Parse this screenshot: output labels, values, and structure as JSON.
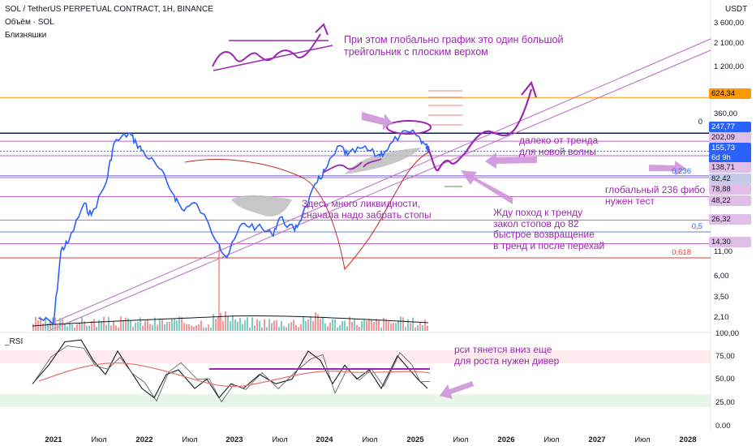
{
  "header": {
    "symbol": "SOL / TetherUS PERPETUAL CONTRACT, 1H, BINANCE",
    "volume_label": "Объём · SOL",
    "indicator_label": "Близняшки",
    "currency": "USDT",
    "rsi_label": "_RSI"
  },
  "price_axis": {
    "scale": "log",
    "ticks": [
      "3 600,00",
      "2 100,00",
      "1 200,00",
      "360,00",
      "11,00",
      "6,00",
      "3,50",
      "2,10"
    ],
    "tags": [
      {
        "text": "624,34",
        "color": "#ff9800",
        "text_color": "#000000"
      },
      {
        "text": "247,77",
        "color": "#2962ff",
        "text_color": "#ffffff"
      },
      {
        "text": "202,09",
        "color": "#e1bee7",
        "text_color": "#131722"
      },
      {
        "text": "155,73",
        "color": "#2962ff",
        "text_color": "#ffffff"
      },
      {
        "text": "6d 9h",
        "color": "#2962ff",
        "text_color": "#ffffff"
      },
      {
        "text": "138,71",
        "color": "#e1bee7",
        "text_color": "#131722"
      },
      {
        "text": "82,42",
        "color": "#c5cae9",
        "text_color": "#131722"
      },
      {
        "text": "78,88",
        "color": "#e1bee7",
        "text_color": "#131722"
      },
      {
        "text": "48,22",
        "color": "#e1bee7",
        "text_color": "#131722"
      },
      {
        "text": "26,32",
        "color": "#e1bee7",
        "text_color": "#131722"
      },
      {
        "text": "14,30",
        "color": "#e1bee7",
        "text_color": "#131722"
      }
    ]
  },
  "fib_labels": [
    "0",
    "0,236",
    "0,5",
    "0,618"
  ],
  "rsi_axis": {
    "ticks": [
      "100,00",
      "75,00",
      "50,00",
      "25,00",
      "0.00"
    ]
  },
  "time_axis": {
    "labels": [
      "2021",
      "Июл",
      "2022",
      "Июл",
      "2023",
      "Июл",
      "2024",
      "Июл",
      "2025",
      "Июл",
      "2026",
      "Июл",
      "2027",
      "Июл",
      "2028"
    ]
  },
  "annotations": {
    "triangle": [
      "При этом глобально график это один большой",
      "трейгольник с плоским верхом"
    ],
    "trend": [
      "далеко от тренда",
      "для новой волны"
    ],
    "liquidity": [
      "Здесь много ликвидности,",
      "сначала надо забрать стопы"
    ],
    "fibo": [
      "глобальный 236 фибо",
      "нужен тест"
    ],
    "plan": [
      "Жду поход к тренду",
      "закол стопов до 82",
      "быстрое возвращение",
      "в тренд и после перехай"
    ],
    "rsi": [
      "рси тянется вниз еще",
      "для роста нужен дивер"
    ]
  },
  "chart_data": {
    "type": "line",
    "title": "SOL / TetherUS PERPETUAL CONTRACT, 1H, BINANCE",
    "y_scale": "log",
    "series": [
      {
        "name": "SOL / TetherUS PERPETUAL CONTRACT",
        "x": [
          "2020-11",
          "2021-01",
          "2021-02",
          "2021-03",
          "2021-05",
          "2021-06",
          "2021-08",
          "2021-09",
          "2021-11",
          "2021-12",
          "2022-01",
          "2022-03",
          "2022-05",
          "2022-06",
          "2022-08",
          "2022-11",
          "2022-12",
          "2023-02",
          "2023-04",
          "2023-06",
          "2023-07",
          "2023-09",
          "2023-10",
          "2023-12",
          "2024-01",
          "2024-03",
          "2024-04",
          "2024-06",
          "2024-08",
          "2024-09",
          "2024-11",
          "2025-01",
          "2025-02",
          "2025-03"
        ],
        "values": [
          2.1,
          1.8,
          12,
          15,
          40,
          30,
          70,
          190,
          250,
          190,
          150,
          100,
          50,
          35,
          40,
          14,
          10,
          24,
          22,
          18,
          28,
          20,
          30,
          70,
          95,
          180,
          140,
          170,
          140,
          155,
          240,
          245,
          200,
          150
        ]
      }
    ],
    "levels": [
      {
        "name": "624,34",
        "value": 624.34
      },
      {
        "name": "247,77",
        "value": 247.77
      },
      {
        "name": "202,09",
        "value": 202.09
      },
      {
        "name": "155,73",
        "value": 155.73
      },
      {
        "name": "138,71",
        "value": 138.71
      },
      {
        "name": "82,42",
        "value": 82.42
      },
      {
        "name": "78,88",
        "value": 78.88
      },
      {
        "name": "48,22",
        "value": 48.22
      },
      {
        "name": "26,32",
        "value": 26.32
      },
      {
        "name": "14,30",
        "value": 14.3
      }
    ],
    "rsi": {
      "ylim": [
        0,
        100
      ],
      "bands": [
        30,
        70
      ],
      "last": 45
    },
    "colors": {
      "price": "#2962ff",
      "annotation": "#9c27b0",
      "orange": "#ff9800",
      "red": "#e53935"
    }
  }
}
